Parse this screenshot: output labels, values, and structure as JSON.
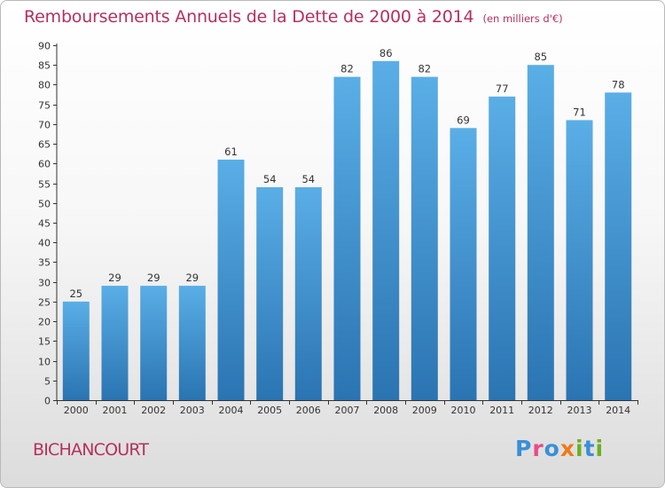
{
  "chart_data": {
    "type": "bar",
    "title": "Remboursements Annuels de la Dette de 2000 à 2014",
    "unit_note": "(en milliers d'€)",
    "categories": [
      "2000",
      "2001",
      "2002",
      "2003",
      "2004",
      "2005",
      "2006",
      "2007",
      "2008",
      "2009",
      "2010",
      "2011",
      "2012",
      "2013",
      "2014"
    ],
    "values": [
      25,
      29,
      29,
      29,
      61,
      54,
      54,
      82,
      86,
      82,
      69,
      77,
      85,
      71,
      78
    ],
    "ylim": [
      0,
      90
    ],
    "yticks": [
      0,
      5,
      10,
      15,
      20,
      25,
      30,
      35,
      40,
      45,
      50,
      55,
      60,
      65,
      70,
      75,
      80,
      85,
      90
    ],
    "grid": false,
    "legend": "none",
    "bar_color_top": "#5aaee6",
    "bar_color_bottom": "#2a74b2"
  },
  "footer": {
    "commune": "BICHANCOURT",
    "logo_text": "Proxiti"
  },
  "colors": {
    "title": "#b5305e",
    "axis": "#333333"
  }
}
